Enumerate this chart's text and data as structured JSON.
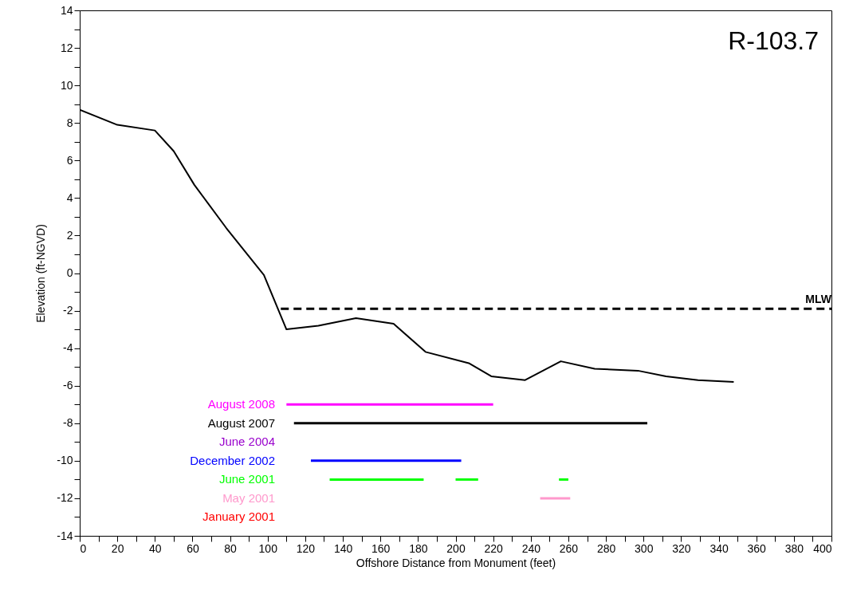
{
  "chart_data": {
    "type": "line",
    "xlabel": "Offshore Distance from Monument (feet)",
    "ylabel": "Elevation (ft-NGVD)",
    "annotations": [
      "R-103.7"
    ],
    "xlim": [
      0,
      400
    ],
    "ylim": [
      -14,
      14
    ],
    "xticks": [
      0,
      {
        "value": 10,
        "label": null
      },
      20,
      {
        "value": 30,
        "label": null
      },
      40,
      {
        "value": 50,
        "label": null
      },
      60,
      {
        "value": 70,
        "label": null
      },
      80,
      {
        "value": 90,
        "label": null
      },
      100,
      {
        "value": 110,
        "label": null
      },
      120,
      {
        "value": 130,
        "label": null
      },
      140,
      {
        "value": 150,
        "label": null
      },
      160,
      {
        "value": 170,
        "label": null
      },
      180,
      {
        "value": 190,
        "label": null
      },
      200,
      {
        "value": 210,
        "label": null
      },
      220,
      {
        "value": 230,
        "label": null
      },
      240,
      {
        "value": 250,
        "label": null
      },
      260,
      {
        "value": 270,
        "label": null
      },
      280,
      {
        "value": 290,
        "label": null
      },
      300,
      {
        "value": 310,
        "label": null
      },
      320,
      {
        "value": 330,
        "label": null
      },
      340,
      {
        "value": 350,
        "label": null
      },
      360,
      {
        "value": 370,
        "label": null
      },
      380,
      {
        "value": 390,
        "label": null
      },
      400
    ],
    "yticks": [
      -14,
      {
        "value": -13,
        "label": null
      },
      -12,
      {
        "value": -11,
        "label": null
      },
      -10,
      {
        "value": -9,
        "label": null
      },
      -8,
      {
        "value": -7,
        "label": null
      },
      -6,
      {
        "value": -5,
        "label": null
      },
      -4,
      {
        "value": -3,
        "label": null
      },
      -2,
      {
        "value": -1,
        "label": null
      },
      0,
      {
        "value": 1,
        "label": null
      },
      2,
      {
        "value": 3,
        "label": null
      },
      4,
      {
        "value": 5,
        "label": null
      },
      6,
      {
        "value": 7,
        "label": null
      },
      8,
      {
        "value": 9,
        "label": null
      },
      10,
      {
        "value": 11,
        "label": null
      },
      12,
      {
        "value": 13,
        "label": null
      },
      14
    ],
    "grid": false,
    "series": [
      {
        "color": "#000000",
        "x": [
          0,
          20,
          40,
          50,
          61,
          78,
          98,
          110,
          127,
          147,
          167,
          184,
          207,
          219,
          237,
          256,
          274,
          297,
          312,
          329,
          348
        ],
        "values": [
          8.7,
          7.9,
          7.6,
          6.5,
          4.7,
          2.4,
          -0.1,
          -3.0,
          -2.8,
          -2.4,
          -2.7,
          -4.2,
          -4.8,
          -5.5,
          -5.7,
          -4.7,
          -5.1,
          -5.2,
          -5.5,
          -5.7,
          -5.8
        ]
      },
      {
        "name": "MLW",
        "color": "#000000",
        "line_style": "dashed",
        "x": [
          107,
          400
        ],
        "values": [
          -1.9,
          -1.9
        ]
      },
      {
        "name": "August 2008",
        "color": "#ff00ff",
        "x": [
          110,
          220
        ],
        "values": [
          -7,
          -7
        ]
      },
      {
        "name": "August 2007",
        "color": "#000000",
        "x": [
          114,
          302
        ],
        "values": [
          -8,
          -8
        ]
      },
      {
        "name": "June 2004",
        "color": "#9900cc"
      },
      {
        "name": "December 2002",
        "color": "#0000ff",
        "x": [
          123,
          203
        ],
        "values": [
          -10,
          -10
        ]
      },
      {
        "name": "June 2001",
        "color": "#00ff00",
        "x": [
          133,
          183,
          null,
          200,
          212,
          null,
          255,
          260
        ],
        "values": [
          -11,
          -11,
          null,
          -11,
          -11,
          null,
          -11,
          -11
        ]
      },
      {
        "name": "May 2001",
        "color": "#ff99cc",
        "x": [
          245,
          261
        ],
        "values": [
          -12,
          -12
        ]
      },
      {
        "name": "January 2001",
        "color": "#ff0000"
      }
    ]
  }
}
